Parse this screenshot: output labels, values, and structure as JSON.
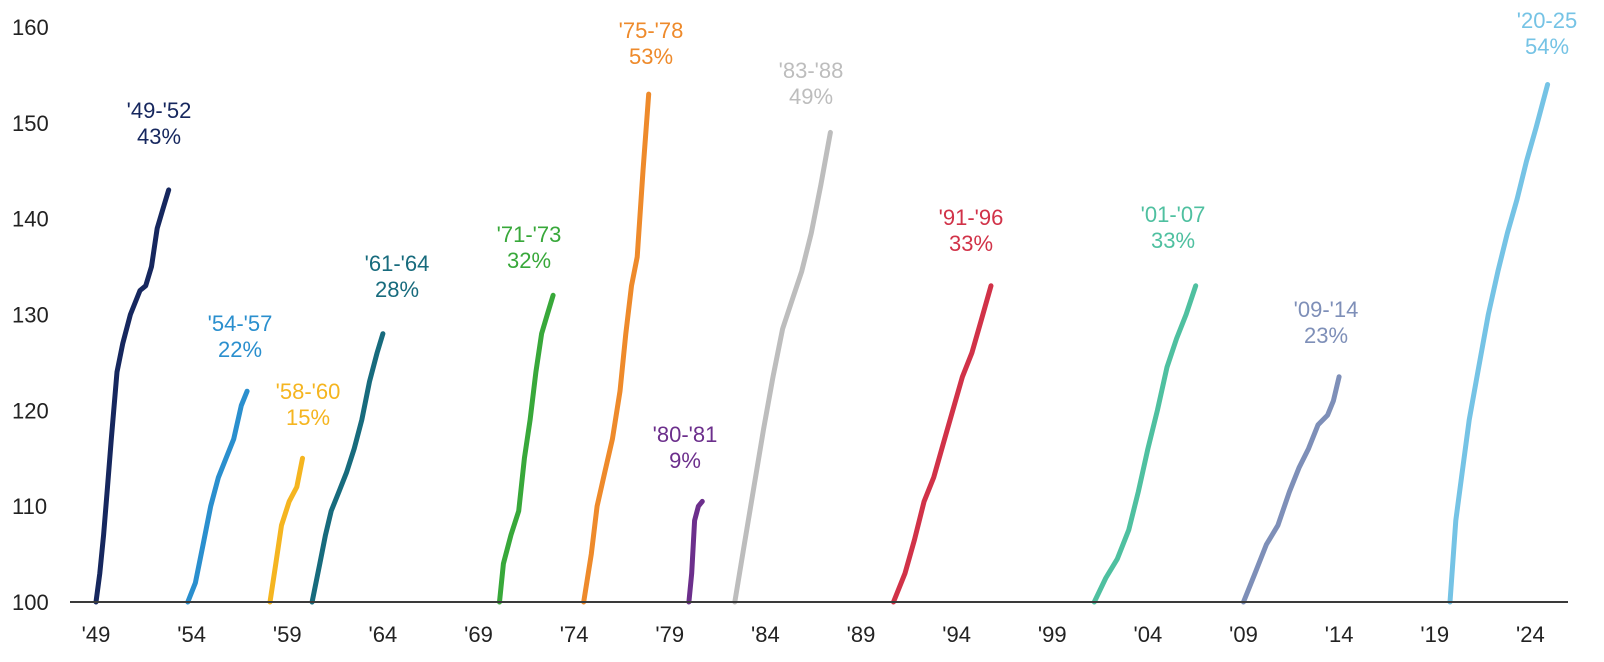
{
  "chart_data": {
    "type": "line",
    "title": "",
    "xlabel": "",
    "ylabel": "",
    "ylim": [
      100,
      160
    ],
    "yticks": [
      "100",
      "110",
      "120",
      "130",
      "140",
      "150",
      "160"
    ],
    "xticks": [
      "'49",
      "'54",
      "'59",
      "'64",
      "'69",
      "'74",
      "'79",
      "'84",
      "'89",
      "'94",
      "'99",
      "'04",
      "'09",
      "'14",
      "'19",
      "'24"
    ],
    "x_range": [
      1949,
      2026.7
    ],
    "grid": false,
    "series": [
      {
        "name": "'49-'52",
        "pct": "43%",
        "color": "#16275e",
        "x": [
          1949.0,
          1949.2,
          1949.4,
          1949.6,
          1949.8,
          1950.1,
          1950.4,
          1950.8,
          1951.3,
          1951.6,
          1951.9,
          1952.2,
          1952.5,
          1952.8
        ],
        "y": [
          100,
          103,
          107,
          112,
          117,
          124,
          127,
          130,
          132.5,
          133,
          135,
          139,
          141,
          143
        ]
      },
      {
        "name": "'54-'57",
        "pct": "22%",
        "color": "#2a8fce",
        "x": [
          1953.8,
          1954.2,
          1954.6,
          1955.0,
          1955.4,
          1955.8,
          1956.2,
          1956.6,
          1956.9
        ],
        "y": [
          100,
          102,
          106,
          110,
          113,
          115,
          117,
          120.5,
          122
        ]
      },
      {
        "name": "'58-'60",
        "pct": "15%",
        "color": "#f5b520",
        "x": [
          1958.1,
          1958.4,
          1958.7,
          1959.1,
          1959.5,
          1959.8
        ],
        "y": [
          100,
          104,
          108,
          110.5,
          112,
          115
        ]
      },
      {
        "name": "'61-'64",
        "pct": "28%",
        "color": "#176b7d",
        "x": [
          1960.3,
          1960.7,
          1961.0,
          1961.3,
          1961.7,
          1962.1,
          1962.5,
          1962.9,
          1963.3,
          1963.7,
          1964.0
        ],
        "y": [
          100,
          104,
          107,
          109.5,
          111.5,
          113.5,
          116,
          119,
          123,
          126,
          128
        ]
      },
      {
        "name": "'71-'73",
        "pct": "32%",
        "color": "#38a83a",
        "x": [
          1970.1,
          1970.3,
          1970.7,
          1971.1,
          1971.4,
          1971.7,
          1972.0,
          1972.3,
          1972.6,
          1972.9
        ],
        "y": [
          100,
          104,
          107,
          109.5,
          115,
          119,
          124,
          128,
          130,
          132
        ]
      },
      {
        "name": "'75-'78",
        "pct": "53%",
        "color": "#ee8a2b",
        "x": [
          1974.5,
          1974.9,
          1975.2,
          1975.6,
          1976.0,
          1976.4,
          1976.7,
          1977.0,
          1977.3,
          1977.6,
          1977.9
        ],
        "y": [
          100,
          105,
          110,
          113.5,
          117,
          122,
          128,
          133,
          136,
          145,
          153
        ]
      },
      {
        "name": "'80-'81",
        "pct": "9%",
        "color": "#6c2f8c",
        "x": [
          1980.0,
          1980.15,
          1980.3,
          1980.5,
          1980.7
        ],
        "y": [
          100,
          103,
          108.5,
          110,
          110.5
        ]
      },
      {
        "name": "'83-'88",
        "pct": "49%",
        "color": "#bdbdbd",
        "x": [
          1982.4,
          1982.9,
          1983.4,
          1983.9,
          1984.4,
          1984.9,
          1985.4,
          1985.9,
          1986.4,
          1986.9,
          1987.4
        ],
        "y": [
          100,
          106,
          112,
          118,
          123.5,
          128.5,
          131.5,
          134.5,
          138.5,
          143.5,
          149
        ]
      },
      {
        "name": "'91-'96",
        "pct": "33%",
        "color": "#d13248",
        "x": [
          1990.7,
          1991.3,
          1991.8,
          1992.3,
          1992.8,
          1993.3,
          1993.8,
          1994.3,
          1994.8,
          1995.3,
          1995.8
        ],
        "y": [
          100,
          103,
          106.5,
          110.5,
          113,
          116.5,
          120,
          123.5,
          126,
          129.5,
          133
        ]
      },
      {
        "name": "'01-'07",
        "pct": "33%",
        "color": "#4fc0a0",
        "x": [
          2001.2,
          2001.8,
          2002.4,
          2003.0,
          2003.5,
          2004.0,
          2004.5,
          2005.0,
          2005.5,
          2006.0,
          2006.5
        ],
        "y": [
          100,
          102.5,
          104.5,
          107.5,
          111.5,
          116,
          120,
          124.5,
          127.5,
          130,
          133
        ]
      },
      {
        "name": "'09-'14",
        "pct": "23%",
        "color": "#7e8fb8",
        "x": [
          2009.0,
          2009.6,
          2010.2,
          2010.8,
          2011.4,
          2011.9,
          2012.4,
          2012.9,
          2013.4,
          2013.7,
          2014.0
        ],
        "y": [
          100,
          103,
          106,
          108,
          111.5,
          114,
          116,
          118.5,
          119.5,
          121,
          123.5
        ]
      },
      {
        "name": "'20-25",
        "pct": "54%",
        "color": "#75c3e5",
        "x": [
          2019.8,
          2020.1,
          2020.4,
          2020.8,
          2021.3,
          2021.8,
          2022.3,
          2022.8,
          2023.3,
          2023.8,
          2024.3,
          2024.9
        ],
        "y": [
          100,
          108.5,
          113,
          119,
          124.5,
          130,
          134.5,
          138.5,
          142,
          146,
          149.5,
          154
        ]
      }
    ]
  }
}
